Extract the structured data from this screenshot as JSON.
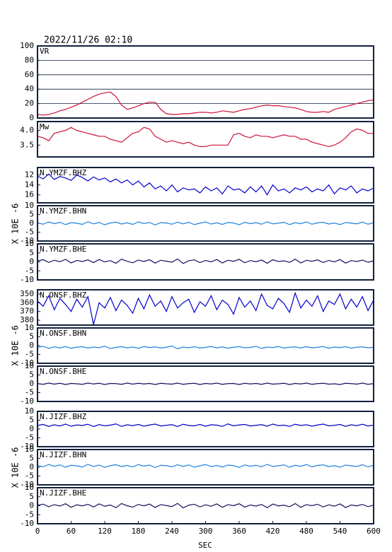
{
  "chart_data": {
    "type": "stacked-line",
    "title": "2022/11/26 02:10",
    "xlabel": "SEC",
    "wave_ylabel": "X 10E -6",
    "xlim": [
      0,
      600
    ],
    "xticks": [
      0,
      60,
      120,
      180,
      240,
      300,
      360,
      420,
      480,
      540,
      600
    ],
    "x": [
      0,
      10,
      20,
      30,
      40,
      50,
      60,
      70,
      80,
      90,
      100,
      110,
      120,
      130,
      140,
      150,
      160,
      170,
      180,
      190,
      200,
      210,
      220,
      230,
      240,
      250,
      260,
      270,
      280,
      290,
      300,
      310,
      320,
      330,
      340,
      350,
      360,
      370,
      380,
      390,
      400,
      410,
      420,
      430,
      440,
      450,
      460,
      470,
      480,
      490,
      500,
      510,
      520,
      530,
      540,
      550,
      560,
      570,
      580,
      590,
      600
    ],
    "panels": [
      {
        "label": "VR",
        "color": "#d0103a",
        "grid": true,
        "ylim": [
          0,
          100
        ],
        "yticks": [
          0,
          20,
          40,
          60,
          80,
          100
        ],
        "values": [
          5,
          4,
          5,
          7,
          10,
          12,
          15,
          18,
          22,
          26,
          30,
          33,
          35,
          36,
          30,
          18,
          12,
          14,
          17,
          20,
          22,
          22,
          12,
          6,
          5,
          5,
          6,
          6,
          7,
          8,
          8,
          7,
          8,
          10,
          9,
          8,
          10,
          12,
          13,
          15,
          17,
          18,
          17,
          17,
          16,
          15,
          14,
          12,
          9,
          8,
          8,
          9,
          8,
          12,
          14,
          16,
          18,
          20,
          22,
          24,
          25
        ]
      },
      {
        "label": "Mw",
        "color": "#d0103a",
        "grid": false,
        "ylim": [
          3.1,
          4.3
        ],
        "yticks": [
          {
            "value": 3.5,
            "label": "3.5"
          },
          {
            "value": 4,
            "label": "4.0"
          }
        ],
        "values": [
          3.8,
          3.75,
          3.65,
          3.9,
          3.95,
          4.0,
          4.1,
          4.0,
          3.95,
          3.9,
          3.85,
          3.8,
          3.8,
          3.7,
          3.65,
          3.6,
          3.75,
          3.9,
          3.95,
          4.1,
          4.05,
          3.8,
          3.7,
          3.6,
          3.65,
          3.6,
          3.55,
          3.6,
          3.5,
          3.45,
          3.45,
          3.5,
          3.5,
          3.5,
          3.5,
          3.85,
          3.9,
          3.8,
          3.75,
          3.85,
          3.8,
          3.8,
          3.75,
          3.8,
          3.85,
          3.8,
          3.8,
          3.7,
          3.7,
          3.6,
          3.55,
          3.5,
          3.45,
          3.5,
          3.6,
          3.75,
          3.95,
          4.05,
          4.0,
          3.9,
          3.9
        ]
      },
      {
        "label": "N.YMZF.BHZ",
        "color": "#0000cc",
        "grid": false,
        "ylim": [
          17.6,
          10.5
        ],
        "yticks": [
          12,
          14,
          16
        ],
        "values": [
          12.2,
          12.8,
          11.8,
          12.9,
          12.3,
          12.6,
          13.1,
          12.0,
          12.5,
          13.2,
          12.4,
          13.0,
          12.6,
          13.4,
          12.8,
          13.6,
          13.0,
          14.0,
          13.2,
          14.4,
          13.6,
          14.8,
          14.2,
          15.2,
          14.0,
          15.4,
          14.6,
          15.0,
          14.8,
          15.6,
          14.4,
          15.2,
          14.6,
          15.8,
          14.2,
          15.0,
          14.8,
          15.6,
          14.4,
          15.4,
          14.2,
          16.0,
          14.0,
          15.2,
          14.8,
          15.6,
          14.6,
          15.0,
          14.4,
          15.4,
          14.8,
          15.2,
          14.0,
          15.8,
          14.6,
          15.0,
          14.2,
          15.6,
          14.8,
          15.2,
          14.6
        ]
      },
      {
        "label": "N.YMZF.BHN",
        "color": "#2080e0",
        "grid": false,
        "ylim": [
          -10,
          10
        ],
        "yticks": [
          -10,
          -5,
          0,
          5,
          10
        ],
        "values": [
          0.3,
          -0.5,
          0.8,
          -0.2,
          0.6,
          -0.7,
          0.4,
          0.1,
          -0.6,
          0.9,
          -0.3,
          0.5,
          -0.8,
          0.2,
          0.7,
          -0.4,
          0.3,
          -0.6,
          0.8,
          -0.1,
          0.5,
          -0.9,
          0.4,
          0.2,
          -0.5,
          0.7,
          -0.3,
          0.6,
          -0.7,
          0.1,
          0.8,
          -0.4,
          0.3,
          -0.6,
          0.5,
          0.2,
          -0.8,
          0.6,
          -0.2,
          0.4,
          -0.5,
          0.9,
          -0.3,
          0.1,
          0.6,
          -0.7,
          0.4,
          -0.2,
          0.8,
          -0.5,
          0.3,
          0.6,
          -0.4,
          0.2,
          -0.7,
          0.5,
          0.1,
          -0.3,
          0.7,
          -0.5,
          0.4
        ]
      },
      {
        "label": "N.YMZF.BHE",
        "color": "#101060",
        "grid": false,
        "ylim": [
          -10,
          10
        ],
        "yticks": [
          -10,
          -5,
          0,
          5,
          10
        ],
        "values": [
          0.5,
          1.2,
          -0.3,
          0.9,
          0.1,
          1.4,
          -0.6,
          0.8,
          0.2,
          1.1,
          -0.4,
          1.3,
          0.0,
          0.7,
          -0.8,
          1.5,
          0.3,
          -0.5,
          1.0,
          0.2,
          1.2,
          -0.7,
          0.9,
          0.4,
          -0.2,
          1.6,
          -0.9,
          0.6,
          1.1,
          -0.4,
          0.8,
          0.0,
          1.3,
          -0.6,
          0.9,
          0.3,
          1.4,
          -0.5,
          0.7,
          0.1,
          1.0,
          -0.8,
          1.2,
          0.2,
          0.6,
          -0.3,
          1.5,
          -0.6,
          0.9,
          0.3,
          1.1,
          -0.4,
          0.8,
          0.0,
          1.3,
          -0.7,
          0.7,
          0.2,
          1.0,
          -0.2,
          0.6
        ]
      },
      {
        "label": "N.ONSF.BHZ",
        "color": "#0000cc",
        "grid": false,
        "ylim": [
          385.6,
          345.2
        ],
        "yticks": [
          350,
          360,
          370,
          380
        ],
        "values": [
          358,
          364,
          352,
          368,
          355,
          362,
          370,
          356,
          365,
          353,
          385,
          360,
          366,
          354,
          369,
          357,
          363,
          372,
          355,
          367,
          351,
          364,
          358,
          370,
          353,
          366,
          360,
          356,
          371,
          359,
          364,
          352,
          368,
          357,
          362,
          373,
          354,
          365,
          358,
          369,
          350,
          363,
          367,
          355,
          361,
          371,
          349,
          366,
          357,
          364,
          352,
          370,
          358,
          362,
          350,
          367,
          356,
          365,
          353,
          369,
          357
        ]
      },
      {
        "label": "N.ONSF.BHN",
        "color": "#2080e0",
        "grid": false,
        "ylim": [
          -10,
          10
        ],
        "yticks": [
          -10,
          -5,
          0,
          5,
          10
        ],
        "values": [
          -1.0,
          -0.4,
          -1.6,
          -0.7,
          -1.3,
          -0.5,
          -1.5,
          -0.9,
          -0.6,
          -1.4,
          -0.8,
          -1.2,
          -0.3,
          -1.7,
          -1.0,
          -0.6,
          -1.3,
          -0.8,
          -1.5,
          -0.5,
          -1.1,
          -0.7,
          -1.4,
          -0.9,
          -0.2,
          -1.8,
          -0.8,
          -1.2,
          -0.6,
          -1.4,
          -1.0,
          -0.5,
          -1.3,
          -0.7,
          -1.5,
          -0.9,
          -0.6,
          -1.2,
          -1.0,
          -0.4,
          -1.6,
          -0.8,
          -1.1,
          -0.5,
          -1.4,
          -0.9,
          -0.7,
          -1.3,
          -0.6,
          -1.2,
          -1.0,
          -0.5,
          -1.5,
          -0.8,
          -1.1,
          -0.6,
          -1.4,
          -0.9,
          -0.7,
          -1.2,
          -1.0
        ]
      },
      {
        "label": "N.ONSF.BHE",
        "color": "#101060",
        "grid": false,
        "ylim": [
          -10,
          10
        ],
        "yticks": [
          -10,
          -5,
          0,
          5,
          10
        ],
        "values": [
          0.1,
          -0.3,
          0.4,
          -0.2,
          0.3,
          -0.4,
          0.2,
          0.0,
          -0.3,
          0.4,
          -0.1,
          0.3,
          -0.4,
          0.2,
          0.1,
          -0.3,
          0.4,
          -0.2,
          0.3,
          -0.1,
          0.2,
          -0.4,
          0.3,
          0.0,
          -0.2,
          0.4,
          -0.3,
          0.1,
          0.3,
          -0.4,
          0.2,
          -0.1,
          0.4,
          -0.3,
          0.1,
          0.2,
          -0.4,
          0.3,
          -0.1,
          0.2,
          -0.3,
          0.4,
          -0.2,
          0.0,
          0.3,
          -0.4,
          0.2,
          -0.1,
          0.4,
          -0.3,
          0.1,
          0.3,
          -0.2,
          0.0,
          -0.4,
          0.3,
          0.1,
          -0.2,
          0.4,
          -0.3,
          0.1
        ]
      },
      {
        "label": "N.JIZF.BHZ",
        "color": "#0000cc",
        "grid": false,
        "ylim": [
          -10,
          10
        ],
        "yticks": [
          -10,
          -5,
          0,
          5,
          10
        ],
        "values": [
          2.0,
          2.6,
          1.5,
          2.4,
          1.7,
          2.8,
          1.6,
          2.3,
          2.0,
          2.7,
          1.4,
          2.5,
          1.8,
          2.2,
          2.9,
          1.5,
          2.4,
          1.9,
          2.6,
          1.6,
          2.3,
          2.8,
          1.7,
          2.1,
          2.5,
          1.4,
          2.7,
          2.0,
          1.8,
          2.6,
          1.6,
          2.4,
          2.2,
          1.5,
          2.9,
          1.8,
          2.3,
          2.6,
          1.7,
          2.1,
          2.5,
          1.6,
          2.8,
          1.9,
          2.2,
          1.5,
          2.7,
          2.0,
          2.4,
          1.6,
          2.3,
          2.8,
          1.8,
          2.1,
          2.6,
          1.5,
          2.4,
          1.9,
          2.7,
          1.7,
          2.2
        ]
      },
      {
        "label": "N.JIZF.BHN",
        "color": "#2080e0",
        "grid": false,
        "ylim": [
          -10,
          10
        ],
        "yticks": [
          -10,
          -5,
          0,
          5,
          10
        ],
        "values": [
          1.0,
          0.2,
          1.5,
          0.5,
          1.3,
          0.0,
          1.1,
          0.8,
          0.1,
          1.6,
          0.4,
          1.2,
          -0.1,
          0.9,
          1.4,
          0.3,
          1.0,
          0.1,
          1.5,
          0.6,
          1.2,
          -0.2,
          1.1,
          0.9,
          0.2,
          1.4,
          0.4,
          1.3,
          0.0,
          0.8,
          1.5,
          0.3,
          1.0,
          0.1,
          1.2,
          0.9,
          -0.1,
          1.3,
          0.5,
          1.1,
          0.2,
          1.6,
          0.4,
          0.8,
          1.3,
          0.0,
          1.1,
          0.5,
          1.5,
          0.2,
          1.0,
          1.3,
          0.3,
          0.9,
          0.0,
          1.2,
          0.8,
          0.4,
          1.4,
          0.2,
          1.1
        ]
      },
      {
        "label": "N.JIZF.BHE",
        "color": "#101060",
        "grid": false,
        "ylim": [
          -10,
          10
        ],
        "yticks": [
          -10,
          -5,
          0,
          5,
          10
        ],
        "values": [
          0.2,
          0.9,
          -0.6,
          0.6,
          -0.2,
          1.1,
          -0.9,
          0.5,
          -0.1,
          0.8,
          -0.7,
          1.0,
          -0.3,
          0.4,
          -1.1,
          1.2,
          0.0,
          -0.8,
          0.7,
          -0.1,
          0.9,
          -1.0,
          0.6,
          0.1,
          -0.5,
          1.3,
          -1.2,
          0.3,
          0.8,
          -0.7,
          0.5,
          -0.3,
          1.0,
          -0.9,
          0.6,
          0.0,
          1.1,
          -0.8,
          0.4,
          -0.2,
          0.7,
          -1.1,
          0.9,
          -0.1,
          0.3,
          -0.6,
          1.2,
          -0.9,
          0.6,
          0.0,
          0.8,
          -0.7,
          0.5,
          -0.3,
          1.0,
          -1.0,
          0.4,
          -0.1,
          0.7,
          -0.5,
          0.3
        ]
      }
    ]
  }
}
